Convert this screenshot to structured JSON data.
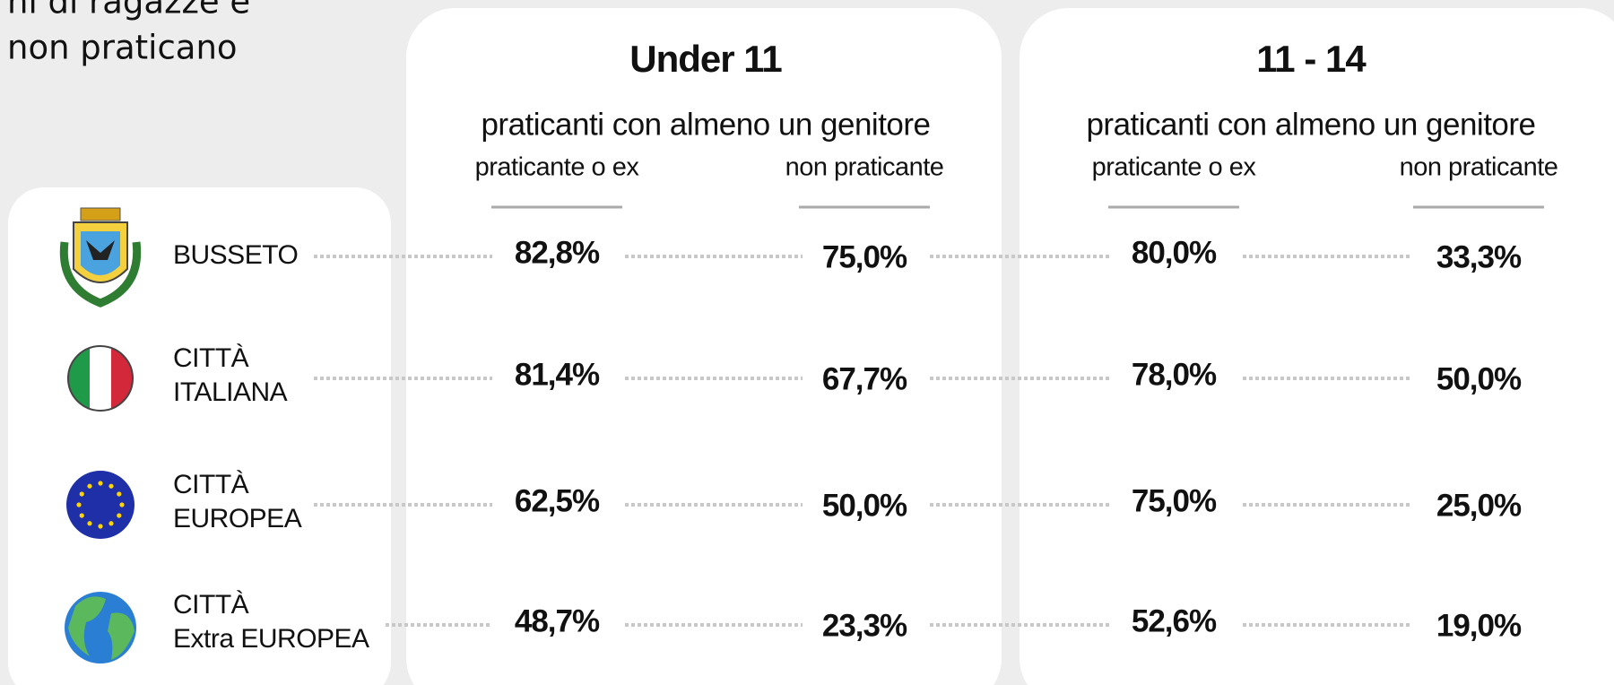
{
  "intro": [
    "ni di ragazze e",
    "non praticano"
  ],
  "groups": [
    {
      "title": "Under 11",
      "subtitle": "praticanti con almeno un genitore",
      "columns": [
        "praticante o ex",
        "non praticante"
      ]
    },
    {
      "title": "11 - 14",
      "subtitle": "praticanti con almeno un genitore",
      "columns": [
        "praticante o ex",
        "non praticante"
      ]
    }
  ],
  "rows": [
    {
      "label": [
        "BUSSETO"
      ],
      "values": [
        "82,8%",
        "75,0%",
        "80,0%",
        "33,3%"
      ]
    },
    {
      "label": [
        "CITTÀ",
        "ITALIANA"
      ],
      "values": [
        "81,4%",
        "67,7%",
        "78,0%",
        "50,0%"
      ]
    },
    {
      "label": [
        "CITTÀ",
        "EUROPEA"
      ],
      "values": [
        "62,5%",
        "50,0%",
        "75,0%",
        "25,0%"
      ]
    },
    {
      "label": [
        "CITTÀ",
        "Extra EUROPEA"
      ],
      "values": [
        "48,7%",
        "23,3%",
        "52,6%",
        "19,0%"
      ]
    }
  ]
}
